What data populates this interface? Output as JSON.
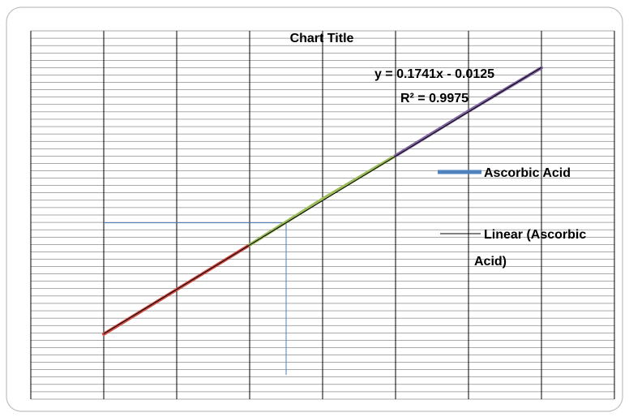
{
  "chart_data": {
    "type": "line",
    "title": "Chart Title",
    "x": [
      1,
      2,
      3,
      4,
      5,
      6,
      7
    ],
    "series": [
      {
        "name": "Ascorbic Acid",
        "values": [
          0.16,
          0.335,
          0.51,
          0.69,
          0.86,
          1.035,
          1.205
        ],
        "segment_colors": [
          "#cd4b43",
          "#cd4b43",
          "#9bbb59",
          "#9bbb59",
          "#8064a2",
          "#8064a2"
        ]
      }
    ],
    "trendline": {
      "name": "Linear (Ascorbic Acid)",
      "slope": 0.1741,
      "intercept": -0.0125,
      "equation": "y = 0.1741x - 0.0125",
      "r_squared": "R² = 0.9975"
    },
    "interpolation_guide": {
      "x": 3.5,
      "y": 0.597,
      "from_x": 1,
      "to_y": 0.0
    },
    "xlim": [
      0,
      8
    ],
    "ylim": [
      -0.095,
      1.35
    ],
    "grid": {
      "major": true,
      "minor_horizontal": true
    },
    "legend": {
      "position": "right",
      "entries": [
        "Ascorbic Acid",
        "Linear (Ascorbic Acid)"
      ]
    },
    "colors": {
      "series": "#4f81bd",
      "trendline": "#000000",
      "grid": "#000000",
      "guide": "#4f81bd",
      "frame": "#bfbfbf"
    }
  }
}
